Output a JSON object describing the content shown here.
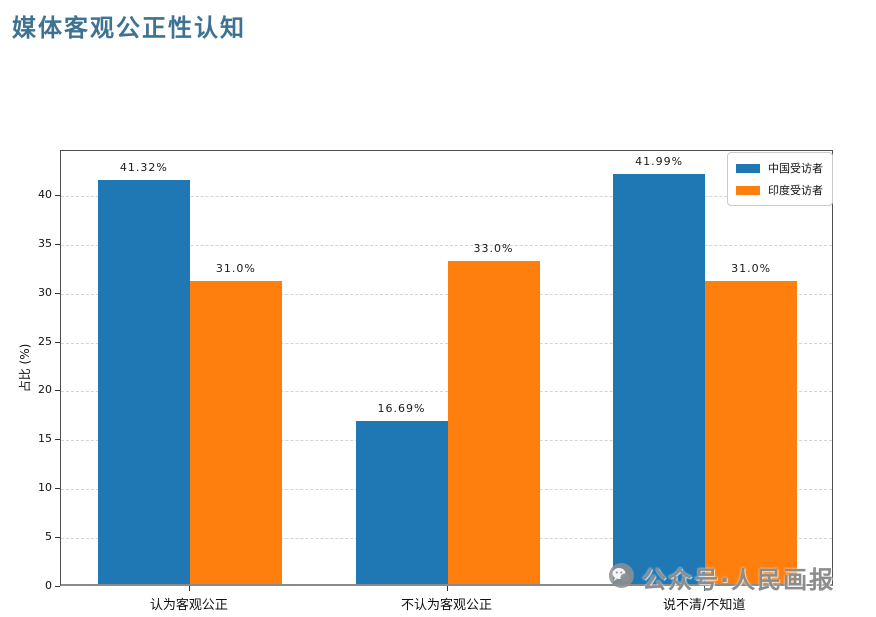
{
  "page": {
    "title": "媒体客观公正性认知",
    "title_color": "#3e7293"
  },
  "chart_data": {
    "type": "bar",
    "title": "媒体客观公正性认知",
    "categories": [
      "认为客观公正",
      "不认为客观公正",
      "说不清/不知道"
    ],
    "series": [
      {
        "name": "中国受访者",
        "color": "#1f77b4",
        "values": [
          41.32,
          16.69,
          41.99
        ],
        "labels": [
          "41.32%",
          "16.69%",
          "41.99%"
        ]
      },
      {
        "name": "印度受访者",
        "color": "#ff7f0e",
        "values": [
          31.0,
          33.0,
          31.0
        ],
        "labels": [
          "31.0%",
          "33.0%",
          "31.0%"
        ]
      }
    ],
    "xlabel": "",
    "ylabel": "占比 (%)",
    "ylim": [
      0,
      44.6
    ],
    "yticks": [
      0,
      5,
      10,
      15,
      20,
      25,
      30,
      35,
      40
    ],
    "grid": "horizontal-dashed",
    "legend_position": "upper-right",
    "frame": true
  },
  "watermark": {
    "icon": "wechat-icon",
    "label": "公众号·人民画报",
    "color": "#8c8c8c"
  }
}
